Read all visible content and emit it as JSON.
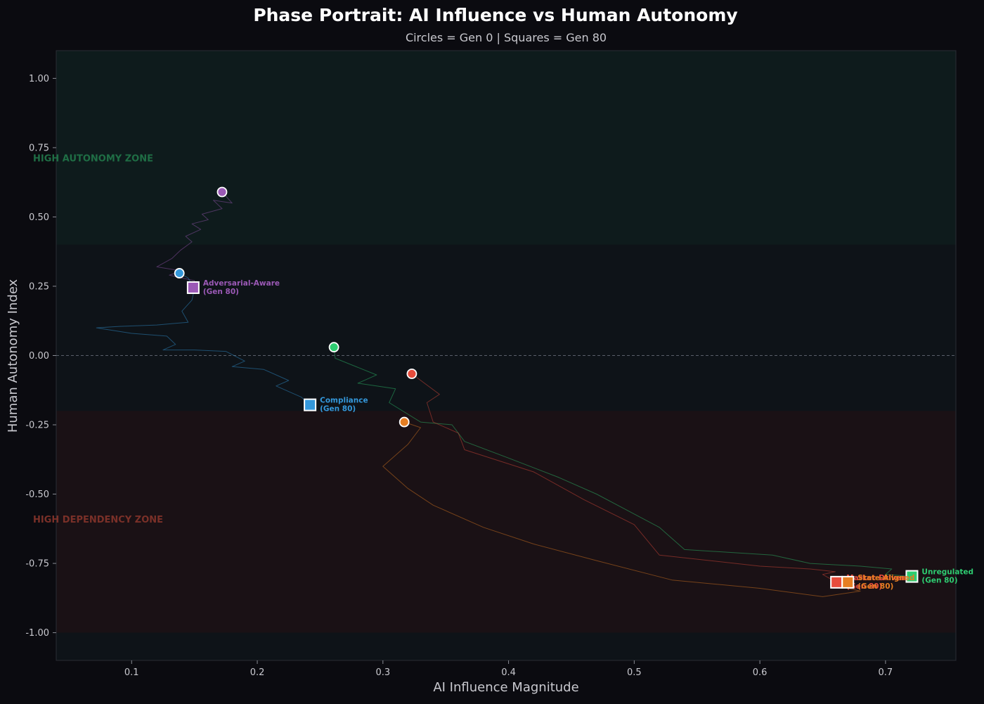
{
  "chart_data": {
    "type": "line",
    "title": "Phase Portrait: AI Influence vs Human Autonomy",
    "subtitle": "Circles = Gen 0 | Squares = Gen 80",
    "xlabel": "AI Influence Magnitude",
    "ylabel": "Human Autonomy Index",
    "xlim": [
      0.04,
      0.756
    ],
    "ylim": [
      -1.1,
      1.1
    ],
    "xticks": [
      0.1,
      0.2,
      0.3,
      0.4,
      0.5,
      0.6,
      0.7
    ],
    "xtick_labels": [
      "0.1",
      "0.2",
      "0.3",
      "0.4",
      "0.5",
      "0.6",
      "0.7"
    ],
    "yticks": [
      1.0,
      0.75,
      0.5,
      0.25,
      0.0,
      -0.25,
      -0.5,
      -0.75,
      -1.0
    ],
    "ytick_labels": [
      "1.00",
      "0.75",
      "0.50",
      "0.25",
      "0.00",
      "-0.25",
      "-0.50",
      "-0.75",
      "-1.00"
    ],
    "grid": false,
    "zones": [
      {
        "label": "HIGH AUTONOMY ZONE",
        "y_range": [
          0.4,
          1.1
        ],
        "color": "#1f6e45"
      },
      {
        "label": "HIGH DEPENDENCY ZONE",
        "y_range": [
          -1.0,
          -0.2
        ],
        "color": "#7a3028"
      }
    ],
    "reference_line": {
      "y": 0.0,
      "style": "dashed"
    },
    "series": [
      {
        "name": "Adversarial-Aware",
        "color": "#9b59b6",
        "label_lines": [
          "Adversarial-Aware",
          "(Gen 80)"
        ],
        "start": [
          0.172,
          0.59
        ],
        "end": [
          0.149,
          0.245
        ],
        "path": [
          [
            0.172,
            0.59
          ],
          [
            0.18,
            0.55
          ],
          [
            0.165,
            0.56
          ],
          [
            0.172,
            0.53
          ],
          [
            0.156,
            0.51
          ],
          [
            0.161,
            0.49
          ],
          [
            0.148,
            0.475
          ],
          [
            0.155,
            0.455
          ],
          [
            0.143,
            0.43
          ],
          [
            0.148,
            0.41
          ],
          [
            0.139,
            0.38
          ],
          [
            0.132,
            0.35
          ],
          [
            0.12,
            0.32
          ],
          [
            0.14,
            0.305
          ],
          [
            0.13,
            0.29
          ],
          [
            0.15,
            0.27
          ],
          [
            0.149,
            0.245
          ]
        ]
      },
      {
        "name": "Compliance",
        "color": "#3498db",
        "label_lines": [
          "Compliance",
          "(Gen 80)"
        ],
        "start": [
          0.138,
          0.297
        ],
        "end": [
          0.242,
          -0.178
        ],
        "path": [
          [
            0.138,
            0.297
          ],
          [
            0.145,
            0.28
          ],
          [
            0.15,
            0.24
          ],
          [
            0.148,
            0.2
          ],
          [
            0.14,
            0.16
          ],
          [
            0.145,
            0.12
          ],
          [
            0.12,
            0.11
          ],
          [
            0.09,
            0.105
          ],
          [
            0.072,
            0.1
          ],
          [
            0.1,
            0.08
          ],
          [
            0.128,
            0.07
          ],
          [
            0.135,
            0.04
          ],
          [
            0.125,
            0.02
          ],
          [
            0.15,
            0.02
          ],
          [
            0.175,
            0.015
          ],
          [
            0.19,
            -0.02
          ],
          [
            0.18,
            -0.04
          ],
          [
            0.205,
            -0.05
          ],
          [
            0.225,
            -0.09
          ],
          [
            0.215,
            -0.11
          ],
          [
            0.235,
            -0.15
          ],
          [
            0.242,
            -0.178
          ]
        ]
      },
      {
        "name": "Unregulated",
        "color": "#2ecc71",
        "label_lines": [
          "Unregulated",
          "(Gen 80)"
        ],
        "start": [
          0.261,
          0.03
        ],
        "end": [
          0.721,
          -0.797
        ],
        "path": [
          [
            0.261,
            0.03
          ],
          [
            0.262,
            -0.01
          ],
          [
            0.295,
            -0.07
          ],
          [
            0.28,
            -0.1
          ],
          [
            0.31,
            -0.12
          ],
          [
            0.305,
            -0.17
          ],
          [
            0.33,
            -0.24
          ],
          [
            0.355,
            -0.25
          ],
          [
            0.365,
            -0.31
          ],
          [
            0.4,
            -0.37
          ],
          [
            0.44,
            -0.44
          ],
          [
            0.47,
            -0.5
          ],
          [
            0.52,
            -0.62
          ],
          [
            0.54,
            -0.7
          ],
          [
            0.61,
            -0.72
          ],
          [
            0.64,
            -0.75
          ],
          [
            0.68,
            -0.76
          ],
          [
            0.705,
            -0.77
          ],
          [
            0.7,
            -0.79
          ],
          [
            0.721,
            -0.797
          ]
        ]
      },
      {
        "name": "Market-Driven",
        "color": "#e74c3c",
        "label_lines": [
          "Market-Driven",
          "(Gen 80)"
        ],
        "start": [
          0.323,
          -0.066
        ],
        "end": [
          0.661,
          -0.818
        ],
        "path": [
          [
            0.323,
            -0.066
          ],
          [
            0.345,
            -0.14
          ],
          [
            0.335,
            -0.17
          ],
          [
            0.34,
            -0.24
          ],
          [
            0.36,
            -0.28
          ],
          [
            0.365,
            -0.34
          ],
          [
            0.42,
            -0.42
          ],
          [
            0.46,
            -0.52
          ],
          [
            0.5,
            -0.61
          ],
          [
            0.52,
            -0.72
          ],
          [
            0.6,
            -0.76
          ],
          [
            0.64,
            -0.77
          ],
          [
            0.66,
            -0.78
          ],
          [
            0.65,
            -0.79
          ],
          [
            0.661,
            -0.818
          ]
        ]
      },
      {
        "name": "State-Aligned",
        "color": "#e67e22",
        "label_lines": [
          "State-Aligned",
          "(Gen 80)"
        ],
        "start": [
          0.317,
          -0.24
        ],
        "end": [
          0.67,
          -0.818
        ],
        "path": [
          [
            0.317,
            -0.24
          ],
          [
            0.33,
            -0.26
          ],
          [
            0.32,
            -0.32
          ],
          [
            0.3,
            -0.4
          ],
          [
            0.32,
            -0.48
          ],
          [
            0.34,
            -0.54
          ],
          [
            0.38,
            -0.62
          ],
          [
            0.42,
            -0.68
          ],
          [
            0.47,
            -0.74
          ],
          [
            0.53,
            -0.81
          ],
          [
            0.6,
            -0.84
          ],
          [
            0.65,
            -0.87
          ],
          [
            0.68,
            -0.85
          ],
          [
            0.66,
            -0.83
          ],
          [
            0.67,
            -0.818
          ]
        ]
      }
    ]
  }
}
